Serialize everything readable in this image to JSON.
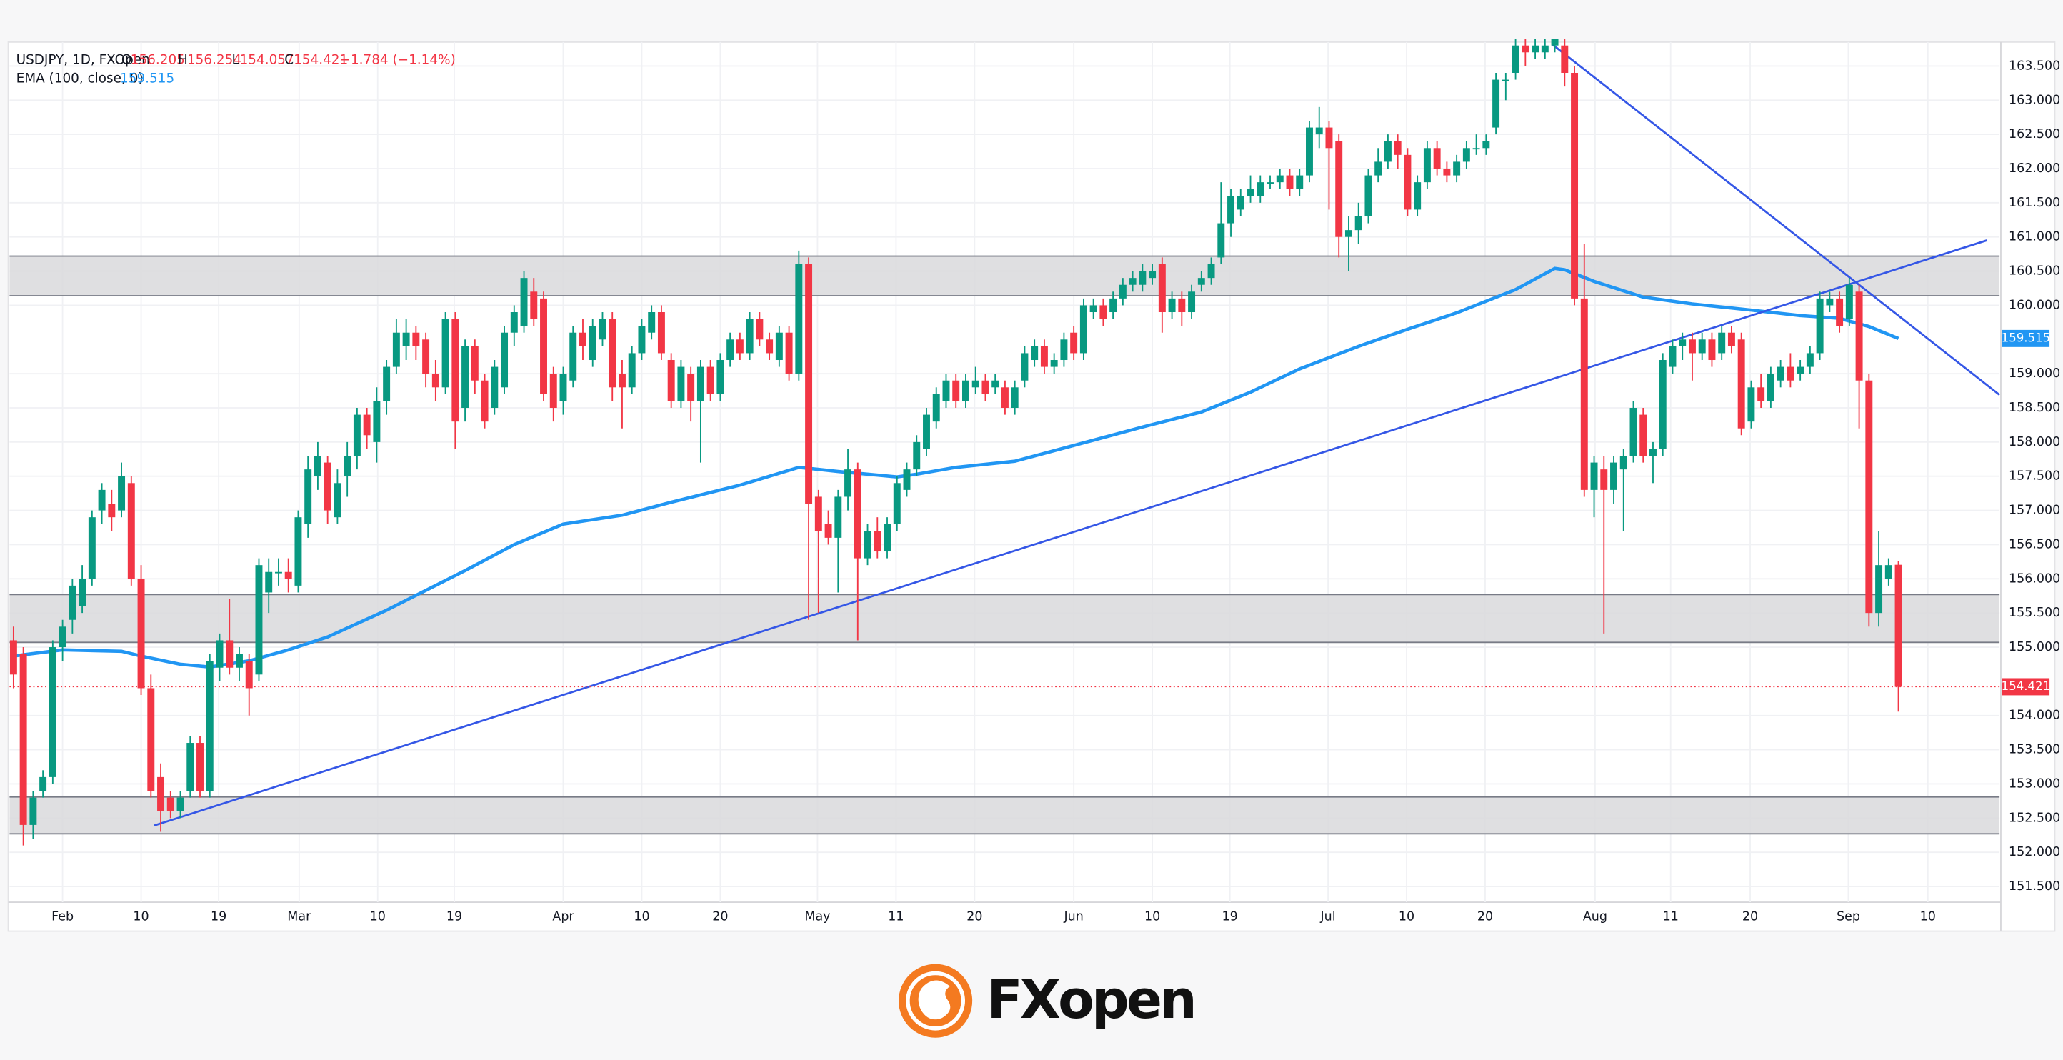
{
  "chart_data": {
    "type": "candlestick",
    "symbol": "USDJPY, 1D, FXOpen",
    "ohlc_letters": [
      "O",
      "H",
      "L",
      "C"
    ],
    "change_label": "−1.784 (−1.14%)",
    "ema_name": "EMA (100, close, 0)",
    "brand": "FXopen",
    "up_color": "#089981",
    "down_color": "#f23645",
    "ema_color": "#2196f3",
    "trend_color": "#3557e6",
    "zone_color": "#d9d9dc",
    "ylim": [
      151.27,
      163.85
    ],
    "yticks": [
      {
        "value": 151.5,
        "label": "151.500"
      },
      {
        "value": 152,
        "label": "152.000"
      },
      {
        "value": 152.5,
        "label": "152.500"
      },
      {
        "value": 153,
        "label": "153.000"
      },
      {
        "value": 153.5,
        "label": "153.500"
      },
      {
        "value": 154,
        "label": "154.000"
      },
      {
        "value": 155,
        "label": "155.000"
      },
      {
        "value": 155.5,
        "label": "155.500"
      },
      {
        "value": 156,
        "label": "156.000"
      },
      {
        "value": 156.5,
        "label": "156.500"
      },
      {
        "value": 157,
        "label": "157.000"
      },
      {
        "value": 157.5,
        "label": "157.500"
      },
      {
        "value": 158,
        "label": "158.000"
      },
      {
        "value": 158.5,
        "label": "158.500"
      },
      {
        "value": 159,
        "label": "159.000"
      },
      {
        "value": 160,
        "label": "160.000"
      },
      {
        "value": 160.5,
        "label": "160.500"
      },
      {
        "value": 161,
        "label": "161.000"
      },
      {
        "value": 161.5,
        "label": "161.500"
      },
      {
        "value": 162,
        "label": "162.000"
      },
      {
        "value": 162.5,
        "label": "162.500"
      },
      {
        "value": 163,
        "label": "163.000"
      },
      {
        "value": 163.5,
        "label": "163.500"
      }
    ],
    "xlim": [
      -0.4,
      202.3
    ],
    "xticks": [
      {
        "value": 5,
        "label": "Feb"
      },
      {
        "value": 13,
        "label": "10"
      },
      {
        "value": 20.9,
        "label": "19"
      },
      {
        "value": 29.1,
        "label": "Mar"
      },
      {
        "value": 37.1,
        "label": "10"
      },
      {
        "value": 44.9,
        "label": "19"
      },
      {
        "value": 56,
        "label": "Apr"
      },
      {
        "value": 64,
        "label": "10"
      },
      {
        "value": 72,
        "label": "20"
      },
      {
        "value": 81.9,
        "label": "May"
      },
      {
        "value": 89.9,
        "label": "11"
      },
      {
        "value": 97.9,
        "label": "20"
      },
      {
        "value": 108,
        "label": "Jun"
      },
      {
        "value": 116,
        "label": "10"
      },
      {
        "value": 123.9,
        "label": "19"
      },
      {
        "value": 133.9,
        "label": "Jul"
      },
      {
        "value": 141.9,
        "label": "10"
      },
      {
        "value": 149.9,
        "label": "20"
      },
      {
        "value": 161.1,
        "label": "Aug"
      },
      {
        "value": 168.8,
        "label": "11"
      },
      {
        "value": 176.9,
        "label": "20"
      },
      {
        "value": 186.9,
        "label": "Sep"
      },
      {
        "value": 195,
        "label": "10"
      }
    ],
    "zones": [
      [
        160.14,
        160.72
      ],
      [
        155.07,
        155.77
      ],
      [
        152.27,
        152.81
      ]
    ],
    "trendlines": [
      {
        "x": [
          14.3,
          201
        ],
        "y": [
          152.39,
          160.95
        ]
      },
      {
        "x": [
          156.8,
          202.3
        ],
        "y": [
          163.81,
          158.69
        ]
      }
    ],
    "ema": {
      "x": [
        0,
        5,
        11,
        13,
        17,
        20,
        24,
        28,
        32,
        38,
        42,
        46,
        51,
        56,
        62,
        67,
        74,
        80,
        84,
        90,
        92,
        96,
        102,
        108,
        115,
        121,
        126,
        131,
        137,
        142,
        147,
        153,
        157,
        158,
        161,
        166,
        171,
        177,
        182,
        186,
        189,
        192
      ],
      "values": [
        154.87,
        154.96,
        154.94,
        154.87,
        154.75,
        154.71,
        154.8,
        154.96,
        155.15,
        155.54,
        155.83,
        156.12,
        156.5,
        156.8,
        156.93,
        157.12,
        157.37,
        157.63,
        157.57,
        157.49,
        157.53,
        157.63,
        157.72,
        157.95,
        158.22,
        158.44,
        158.73,
        159.07,
        159.4,
        159.65,
        159.89,
        160.23,
        160.54,
        160.52,
        160.35,
        160.12,
        160.02,
        159.93,
        159.85,
        159.81,
        159.69,
        159.515
      ]
    },
    "candles": [
      [
        155.1,
        155.3,
        154.4,
        154.6
      ],
      [
        154.9,
        155.0,
        152.1,
        152.4
      ],
      [
        152.4,
        152.9,
        152.2,
        152.8
      ],
      [
        152.9,
        153.2,
        152.8,
        153.1
      ],
      [
        153.1,
        155.1,
        153.0,
        155.0
      ],
      [
        155.0,
        155.4,
        154.8,
        155.3
      ],
      [
        155.4,
        156.0,
        155.2,
        155.9
      ],
      [
        155.6,
        156.2,
        155.5,
        156.0
      ],
      [
        156.0,
        157.0,
        155.9,
        156.9
      ],
      [
        157.0,
        157.4,
        156.8,
        157.3
      ],
      [
        157.1,
        157.3,
        156.7,
        156.9
      ],
      [
        157.0,
        157.7,
        156.9,
        157.5
      ],
      [
        157.4,
        157.5,
        155.9,
        156.0
      ],
      [
        156.0,
        156.2,
        154.3,
        154.4
      ],
      [
        154.4,
        154.6,
        152.8,
        152.9
      ],
      [
        153.1,
        153.3,
        152.3,
        152.6
      ],
      [
        152.8,
        152.9,
        152.5,
        152.6
      ],
      [
        152.6,
        152.9,
        152.5,
        152.8
      ],
      [
        152.9,
        153.7,
        152.8,
        153.6
      ],
      [
        153.6,
        153.7,
        152.8,
        152.9
      ],
      [
        152.9,
        154.9,
        152.8,
        154.8
      ],
      [
        154.7,
        155.2,
        154.5,
        155.1
      ],
      [
        155.1,
        155.7,
        154.6,
        154.7
      ],
      [
        154.7,
        155.0,
        154.5,
        154.9
      ],
      [
        154.8,
        154.9,
        154.0,
        154.4
      ],
      [
        154.6,
        156.3,
        154.5,
        156.2
      ],
      [
        155.8,
        156.3,
        155.5,
        156.1
      ],
      [
        156.1,
        156.3,
        155.9,
        156.1
      ],
      [
        156.1,
        156.3,
        155.8,
        156.0
      ],
      [
        155.9,
        157.0,
        155.8,
        156.9
      ],
      [
        156.8,
        157.8,
        156.6,
        157.6
      ],
      [
        157.5,
        158.0,
        157.3,
        157.8
      ],
      [
        157.7,
        157.8,
        156.8,
        157.0
      ],
      [
        156.9,
        157.6,
        156.8,
        157.4
      ],
      [
        157.5,
        158.0,
        157.2,
        157.8
      ],
      [
        157.8,
        158.5,
        157.6,
        158.4
      ],
      [
        158.4,
        158.5,
        157.9,
        158.1
      ],
      [
        158.0,
        158.8,
        157.7,
        158.6
      ],
      [
        158.6,
        159.2,
        158.4,
        159.1
      ],
      [
        159.1,
        159.8,
        159.0,
        159.6
      ],
      [
        159.4,
        159.8,
        159.2,
        159.6
      ],
      [
        159.6,
        159.7,
        159.2,
        159.4
      ],
      [
        159.5,
        159.6,
        158.8,
        159.0
      ],
      [
        159.0,
        159.2,
        158.6,
        158.8
      ],
      [
        158.8,
        159.9,
        158.7,
        159.8
      ],
      [
        159.8,
        159.9,
        157.9,
        158.3
      ],
      [
        158.5,
        159.5,
        158.3,
        159.4
      ],
      [
        159.4,
        159.5,
        158.7,
        158.9
      ],
      [
        158.9,
        159.0,
        158.2,
        158.3
      ],
      [
        158.5,
        159.2,
        158.4,
        159.1
      ],
      [
        158.8,
        159.7,
        158.7,
        159.6
      ],
      [
        159.6,
        160.0,
        159.4,
        159.9
      ],
      [
        159.7,
        160.5,
        159.6,
        160.4
      ],
      [
        160.2,
        160.4,
        159.7,
        159.8
      ],
      [
        160.1,
        160.2,
        158.6,
        158.7
      ],
      [
        159.0,
        159.1,
        158.3,
        158.5
      ],
      [
        158.6,
        159.1,
        158.4,
        159.0
      ],
      [
        158.9,
        159.7,
        158.8,
        159.6
      ],
      [
        159.6,
        159.8,
        159.2,
        159.4
      ],
      [
        159.2,
        159.8,
        159.1,
        159.7
      ],
      [
        159.5,
        159.9,
        159.4,
        159.8
      ],
      [
        159.8,
        159.9,
        158.6,
        158.8
      ],
      [
        159.0,
        159.2,
        158.2,
        158.8
      ],
      [
        158.8,
        159.4,
        158.7,
        159.3
      ],
      [
        159.3,
        159.8,
        159.2,
        159.7
      ],
      [
        159.6,
        160.0,
        159.5,
        159.9
      ],
      [
        159.9,
        160.0,
        159.2,
        159.3
      ],
      [
        159.2,
        159.3,
        158.5,
        158.6
      ],
      [
        158.6,
        159.2,
        158.5,
        159.1
      ],
      [
        159.0,
        159.1,
        158.3,
        158.6
      ],
      [
        158.6,
        159.2,
        157.7,
        159.1
      ],
      [
        159.1,
        159.2,
        158.6,
        158.7
      ],
      [
        158.7,
        159.3,
        158.6,
        159.2
      ],
      [
        159.2,
        159.6,
        159.1,
        159.5
      ],
      [
        159.5,
        159.6,
        159.2,
        159.3
      ],
      [
        159.3,
        159.9,
        159.2,
        159.8
      ],
      [
        159.8,
        159.9,
        159.4,
        159.5
      ],
      [
        159.5,
        159.6,
        159.2,
        159.3
      ],
      [
        159.2,
        159.7,
        159.1,
        159.6
      ],
      [
        159.6,
        159.7,
        158.9,
        159.0
      ],
      [
        159.0,
        160.8,
        158.9,
        160.6
      ],
      [
        160.6,
        160.7,
        155.4,
        157.1
      ],
      [
        157.2,
        157.3,
        155.5,
        156.7
      ],
      [
        156.8,
        157.0,
        156.5,
        156.6
      ],
      [
        156.6,
        157.3,
        155.8,
        157.2
      ],
      [
        157.2,
        157.9,
        157.0,
        157.6
      ],
      [
        157.6,
        157.7,
        155.1,
        156.3
      ],
      [
        156.3,
        156.8,
        156.2,
        156.7
      ],
      [
        156.7,
        156.9,
        156.3,
        156.4
      ],
      [
        156.4,
        156.9,
        156.3,
        156.8
      ],
      [
        156.8,
        157.5,
        156.7,
        157.4
      ],
      [
        157.3,
        157.7,
        157.2,
        157.6
      ],
      [
        157.6,
        158.1,
        157.5,
        158.0
      ],
      [
        157.9,
        158.5,
        157.8,
        158.4
      ],
      [
        158.3,
        158.8,
        158.2,
        158.7
      ],
      [
        158.6,
        159.0,
        158.5,
        158.9
      ],
      [
        158.9,
        159.0,
        158.5,
        158.6
      ],
      [
        158.6,
        159.0,
        158.5,
        158.9
      ],
      [
        158.8,
        159.1,
        158.7,
        158.9
      ],
      [
        158.9,
        159.0,
        158.6,
        158.7
      ],
      [
        158.8,
        159.0,
        158.7,
        158.9
      ],
      [
        158.8,
        158.9,
        158.4,
        158.5
      ],
      [
        158.5,
        158.9,
        158.4,
        158.8
      ],
      [
        158.9,
        159.4,
        158.8,
        159.3
      ],
      [
        159.2,
        159.5,
        159.1,
        159.4
      ],
      [
        159.4,
        159.5,
        159.0,
        159.1
      ],
      [
        159.1,
        159.3,
        159.0,
        159.2
      ],
      [
        159.2,
        159.6,
        159.1,
        159.5
      ],
      [
        159.6,
        159.7,
        159.2,
        159.3
      ],
      [
        159.3,
        160.1,
        159.2,
        160.0
      ],
      [
        159.9,
        160.1,
        159.8,
        160.0
      ],
      [
        160.0,
        160.1,
        159.7,
        159.8
      ],
      [
        159.9,
        160.2,
        159.8,
        160.1
      ],
      [
        160.1,
        160.4,
        160.0,
        160.3
      ],
      [
        160.3,
        160.5,
        160.2,
        160.4
      ],
      [
        160.3,
        160.6,
        160.2,
        160.5
      ],
      [
        160.4,
        160.6,
        160.3,
        160.5
      ],
      [
        160.6,
        160.7,
        159.6,
        159.9
      ],
      [
        159.9,
        160.2,
        159.8,
        160.1
      ],
      [
        160.1,
        160.2,
        159.7,
        159.9
      ],
      [
        159.9,
        160.3,
        159.8,
        160.2
      ],
      [
        160.3,
        160.5,
        160.2,
        160.4
      ],
      [
        160.4,
        160.7,
        160.3,
        160.6
      ],
      [
        160.7,
        161.8,
        160.6,
        161.2
      ],
      [
        161.2,
        161.7,
        161.0,
        161.6
      ],
      [
        161.4,
        161.7,
        161.3,
        161.6
      ],
      [
        161.6,
        161.9,
        161.5,
        161.7
      ],
      [
        161.6,
        161.9,
        161.5,
        161.8
      ],
      [
        161.8,
        161.9,
        161.7,
        161.8
      ],
      [
        161.8,
        162.0,
        161.7,
        161.9
      ],
      [
        161.9,
        162.0,
        161.6,
        161.7
      ],
      [
        161.7,
        162.0,
        161.6,
        161.9
      ],
      [
        161.9,
        162.7,
        161.8,
        162.6
      ],
      [
        162.5,
        162.9,
        162.3,
        162.6
      ],
      [
        162.6,
        162.7,
        161.4,
        162.3
      ],
      [
        162.4,
        162.5,
        160.7,
        161.0
      ],
      [
        161.0,
        161.3,
        160.5,
        161.1
      ],
      [
        161.1,
        161.5,
        160.9,
        161.3
      ],
      [
        161.3,
        162.0,
        161.2,
        161.9
      ],
      [
        161.9,
        162.3,
        161.8,
        162.1
      ],
      [
        162.1,
        162.5,
        162.0,
        162.4
      ],
      [
        162.4,
        162.5,
        162.0,
        162.2
      ],
      [
        162.2,
        162.3,
        161.3,
        161.4
      ],
      [
        161.4,
        161.9,
        161.3,
        161.8
      ],
      [
        161.8,
        162.4,
        161.7,
        162.3
      ],
      [
        162.3,
        162.4,
        161.9,
        162.0
      ],
      [
        162.0,
        162.1,
        161.8,
        161.9
      ],
      [
        161.9,
        162.2,
        161.8,
        162.1
      ],
      [
        162.1,
        162.4,
        162.0,
        162.3
      ],
      [
        162.3,
        162.5,
        162.2,
        162.3
      ],
      [
        162.3,
        162.5,
        162.2,
        162.4
      ],
      [
        162.6,
        163.4,
        162.5,
        163.3
      ],
      [
        163.3,
        163.4,
        163.0,
        163.3
      ],
      [
        163.4,
        163.9,
        163.3,
        163.8
      ],
      [
        163.8,
        163.9,
        163.5,
        163.7
      ],
      [
        163.7,
        163.9,
        163.6,
        163.8
      ],
      [
        163.7,
        163.9,
        163.6,
        163.8
      ],
      [
        163.8,
        163.9,
        163.7,
        163.9
      ],
      [
        163.8,
        163.9,
        163.2,
        163.4
      ],
      [
        163.4,
        163.5,
        160.0,
        160.1
      ],
      [
        160.1,
        160.9,
        157.2,
        157.3
      ],
      [
        157.3,
        157.8,
        156.9,
        157.7
      ],
      [
        157.6,
        157.8,
        155.2,
        157.3
      ],
      [
        157.3,
        157.8,
        157.1,
        157.7
      ],
      [
        157.6,
        157.9,
        156.7,
        157.8
      ],
      [
        157.8,
        158.6,
        157.7,
        158.5
      ],
      [
        158.4,
        158.5,
        157.7,
        157.8
      ],
      [
        157.8,
        158.0,
        157.4,
        157.9
      ],
      [
        157.9,
        159.3,
        157.8,
        159.2
      ],
      [
        159.1,
        159.5,
        159.0,
        159.4
      ],
      [
        159.4,
        159.6,
        159.2,
        159.5
      ],
      [
        159.5,
        159.6,
        158.9,
        159.3
      ],
      [
        159.3,
        159.6,
        159.2,
        159.5
      ],
      [
        159.5,
        159.6,
        159.1,
        159.2
      ],
      [
        159.3,
        159.7,
        159.2,
        159.6
      ],
      [
        159.6,
        159.7,
        159.3,
        159.4
      ],
      [
        159.5,
        159.6,
        158.1,
        158.2
      ],
      [
        158.3,
        158.9,
        158.2,
        158.8
      ],
      [
        158.8,
        159.0,
        158.5,
        158.6
      ],
      [
        158.6,
        159.1,
        158.5,
        159.0
      ],
      [
        158.9,
        159.2,
        158.8,
        159.1
      ],
      [
        159.1,
        159.3,
        158.8,
        158.9
      ],
      [
        159.0,
        159.2,
        158.9,
        159.1
      ],
      [
        159.1,
        159.4,
        159.0,
        159.3
      ],
      [
        159.3,
        160.2,
        159.2,
        160.1
      ],
      [
        160.0,
        160.2,
        159.9,
        160.1
      ],
      [
        160.1,
        160.2,
        159.6,
        159.7
      ],
      [
        159.8,
        160.4,
        159.7,
        160.3
      ],
      [
        160.2,
        160.3,
        158.2,
        158.9
      ],
      [
        158.9,
        159.0,
        155.3,
        155.5
      ],
      [
        155.5,
        156.7,
        155.3,
        156.2
      ],
      [
        156.0,
        156.3,
        155.9,
        156.2
      ],
      [
        156.205,
        156.254,
        154.057,
        154.421
      ]
    ]
  }
}
